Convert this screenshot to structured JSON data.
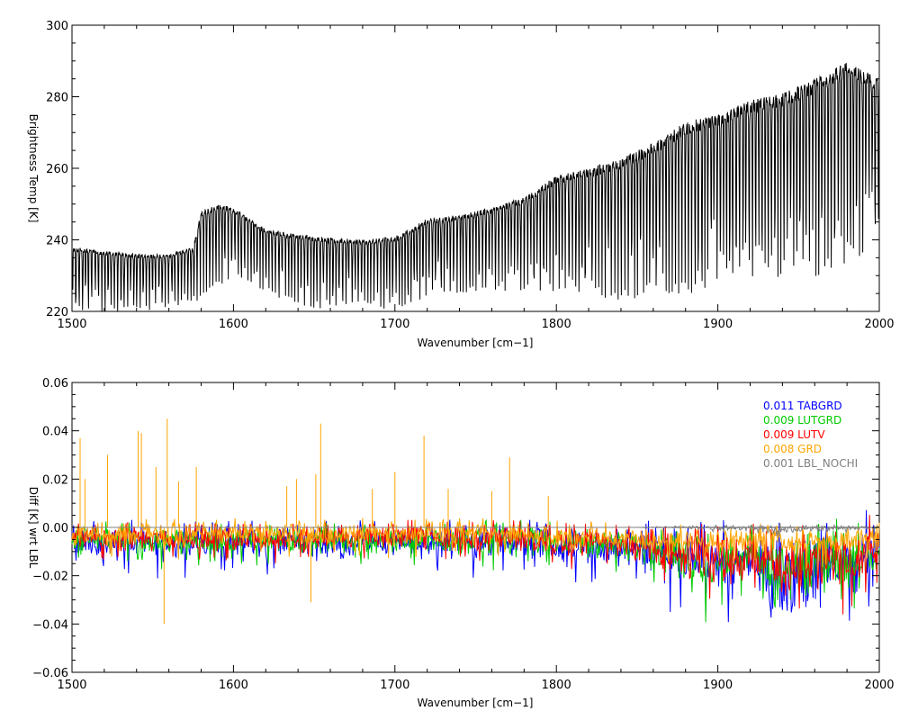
{
  "chart_data": [
    {
      "type": "line",
      "xlabel": "Wavenumber [cm−1]",
      "ylabel": "Brightness Temp [K]",
      "xlim": [
        1500,
        2000
      ],
      "ylim": [
        220,
        300
      ],
      "xticks": [
        1500,
        1600,
        1700,
        1800,
        1900,
        2000
      ],
      "yticks": [
        220,
        240,
        260,
        280,
        300
      ],
      "grid": false,
      "series": [
        {
          "color": "#000000",
          "envelope": {
            "x": [
              1500,
              1520,
              1540,
              1560,
              1575,
              1580,
              1590,
              1600,
              1620,
              1650,
              1680,
              1700,
              1720,
              1740,
              1760,
              1780,
              1800,
              1820,
              1840,
              1860,
              1880,
              1900,
              1920,
              1940,
              1960,
              1980,
              2000
            ],
            "upper": [
              238,
              237,
              236,
              236,
              238,
              248,
              250,
              249,
              243,
              241,
              240,
              241,
              246,
              247,
              249,
              252,
              258,
              260,
              263,
              267,
              273,
              275,
              279,
              281,
              285,
              290,
              285
            ],
            "lower": [
              221,
              221,
              221,
              222,
              223,
              224,
              228,
              230,
              226,
              222,
              222,
              222,
              225,
              226,
              227,
              227,
              228,
              226,
              225,
              225,
              227,
              230,
              230,
              232,
              232,
              235,
              240
            ]
          }
        }
      ]
    },
    {
      "type": "line",
      "xlabel": "Wavenumber [cm−1]",
      "ylabel": "Diff [K] wrt LBL",
      "xlim": [
        1500,
        2000
      ],
      "ylim": [
        -0.06,
        0.06
      ],
      "xticks": [
        1500,
        1600,
        1700,
        1800,
        1900,
        2000
      ],
      "yticks": [
        -0.06,
        -0.04,
        -0.02,
        0.0,
        0.02,
        0.04,
        0.06
      ],
      "ytick_labels": [
        "−0.06",
        "−0.04",
        "−0.02",
        "0.00",
        "0.02",
        "0.04",
        "0.06"
      ],
      "zero_line": true,
      "legend_position": "top-right",
      "series": [
        {
          "name": "TABGRD",
          "rms": "0.011",
          "color": "#0000ff",
          "envelope": {
            "x": [
              1500,
              1550,
              1600,
              1650,
              1700,
              1750,
              1800,
              1840,
              1860,
              1880,
              1900,
              1920,
              1935,
              1950,
              1970,
              1985,
              2000
            ],
            "upper": [
              0.004,
              0.003,
              0.003,
              0.003,
              0.003,
              0.005,
              0.003,
              0.002,
              0.003,
              0.002,
              0.003,
              0.003,
              0.002,
              0.004,
              0.005,
              0.003,
              0.012
            ],
            "lower": [
              -0.018,
              -0.02,
              -0.021,
              -0.019,
              -0.019,
              -0.02,
              -0.021,
              -0.022,
              -0.028,
              -0.035,
              -0.04,
              -0.033,
              -0.056,
              -0.053,
              -0.04,
              -0.042,
              -0.03
            ]
          }
        },
        {
          "name": "LUTGRD",
          "rms": "0.009",
          "color": "#00cc00",
          "envelope": {
            "x": [
              1500,
              1550,
              1600,
              1650,
              1700,
              1750,
              1800,
              1840,
              1860,
              1880,
              1900,
              1920,
              1935,
              1950,
              1970,
              1985,
              2000
            ],
            "upper": [
              0.003,
              0.002,
              0.003,
              0.002,
              0.003,
              0.004,
              0.003,
              0.002,
              0.002,
              0.002,
              0.002,
              0.002,
              0.002,
              0.003,
              0.004,
              0.003,
              0.008
            ],
            "lower": [
              -0.015,
              -0.017,
              -0.018,
              -0.016,
              -0.016,
              -0.017,
              -0.018,
              -0.02,
              -0.026,
              -0.032,
              -0.038,
              -0.03,
              -0.046,
              -0.045,
              -0.036,
              -0.039,
              -0.028
            ]
          }
        },
        {
          "name": "LUTV",
          "rms": "0.009",
          "color": "#ff0000",
          "envelope": {
            "x": [
              1500,
              1550,
              1600,
              1650,
              1700,
              1750,
              1800,
              1840,
              1860,
              1880,
              1900,
              1920,
              1935,
              1950,
              1970,
              1985,
              2000
            ],
            "upper": [
              0.003,
              0.002,
              0.002,
              0.002,
              0.003,
              0.004,
              0.002,
              0.002,
              0.002,
              0.002,
              0.002,
              0.002,
              0.002,
              0.003,
              0.004,
              0.003,
              0.007
            ],
            "lower": [
              -0.013,
              -0.014,
              -0.016,
              -0.014,
              -0.014,
              -0.015,
              -0.017,
              -0.019,
              -0.025,
              -0.03,
              -0.036,
              -0.028,
              -0.044,
              -0.043,
              -0.035,
              -0.041,
              -0.027
            ]
          }
        },
        {
          "name": "GRD",
          "rms": "0.008",
          "color": "#ffa500",
          "spikes": [
            {
              "x": 1505,
              "y": 0.037
            },
            {
              "x": 1508,
              "y": 0.02
            },
            {
              "x": 1522,
              "y": 0.03
            },
            {
              "x": 1541,
              "y": 0.04
            },
            {
              "x": 1543,
              "y": 0.039
            },
            {
              "x": 1552,
              "y": 0.025
            },
            {
              "x": 1557,
              "y": -0.04
            },
            {
              "x": 1559,
              "y": 0.045
            },
            {
              "x": 1566,
              "y": 0.019
            },
            {
              "x": 1577,
              "y": 0.025
            },
            {
              "x": 1633,
              "y": 0.017
            },
            {
              "x": 1639,
              "y": 0.02
            },
            {
              "x": 1648,
              "y": -0.031
            },
            {
              "x": 1651,
              "y": 0.022
            },
            {
              "x": 1654,
              "y": 0.043
            },
            {
              "x": 1686,
              "y": 0.016
            },
            {
              "x": 1700,
              "y": 0.023
            },
            {
              "x": 1718,
              "y": 0.038
            },
            {
              "x": 1733,
              "y": 0.016
            },
            {
              "x": 1760,
              "y": 0.015
            },
            {
              "x": 1771,
              "y": 0.029
            },
            {
              "x": 1795,
              "y": 0.013
            }
          ],
          "envelope": {
            "x": [
              1500,
              1550,
              1600,
              1650,
              1700,
              1750,
              1800,
              1850,
              1900,
              1950,
              2000
            ],
            "upper": [
              0.004,
              0.004,
              0.004,
              0.004,
              0.004,
              0.004,
              0.003,
              0.002,
              0.002,
              0.002,
              0.002
            ],
            "lower": [
              -0.014,
              -0.012,
              -0.012,
              -0.012,
              -0.012,
              -0.012,
              -0.013,
              -0.015,
              -0.016,
              -0.016,
              -0.015
            ]
          }
        },
        {
          "name": "LBL_NOCHI",
          "rms": "0.001",
          "color": "#808080",
          "envelope": {
            "x": [
              1500,
              1850,
              1880,
              1900,
              1920,
              1935,
              1950,
              1970,
              1985,
              2000
            ],
            "upper": [
              0.0,
              0.0,
              0.001,
              0.001,
              0.001,
              0.002,
              0.002,
              0.002,
              0.001,
              0.001
            ],
            "lower": [
              0.0,
              0.0,
              -0.001,
              -0.002,
              -0.002,
              -0.005,
              -0.004,
              -0.003,
              -0.002,
              -0.002
            ]
          }
        }
      ]
    }
  ]
}
